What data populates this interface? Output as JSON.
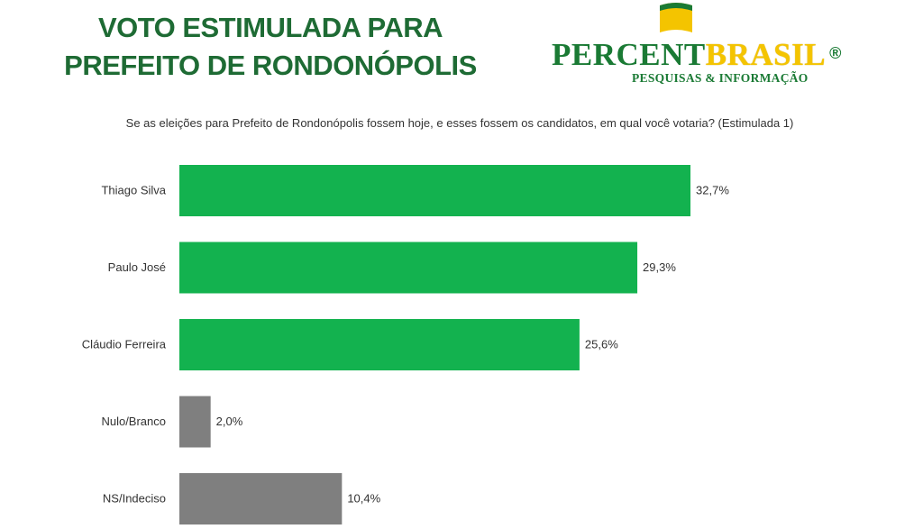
{
  "title": {
    "line1": "VOTO ESTIMULADA PARA",
    "line2": "PREFEITO DE RONDONÓPOLIS"
  },
  "logo": {
    "name_part1": "PERCENT",
    "name_part2": "BRASIL",
    "registered": "®",
    "tagline": "PESQUISAS & INFORMAÇÃO"
  },
  "question": "Se as eleições para Prefeito de Rondonópolis fossem hoje, e esses fossem os candidatos, em qual você votaria? (Estimulada 1)",
  "colors": {
    "title_green": "#1e6b34",
    "bar_green": "#13b24f",
    "bar_gray": "#7f7f7f",
    "logo_green": "#1a7a34",
    "logo_yellow": "#f4c400"
  },
  "chart_data": {
    "type": "bar",
    "orientation": "horizontal",
    "categories": [
      "Thiago Silva",
      "Paulo José",
      "Cláudio Ferreira",
      "Nulo/Branco",
      "NS/Indeciso"
    ],
    "values": [
      32.7,
      29.3,
      25.6,
      2.0,
      10.4
    ],
    "value_labels": [
      "32,7%",
      "29,3%",
      "25,6%",
      "2,0%",
      "10,4%"
    ],
    "bar_colors": [
      "#13b24f",
      "#13b24f",
      "#13b24f",
      "#7f7f7f",
      "#7f7f7f"
    ],
    "title": "",
    "xlabel": "",
    "ylabel": "",
    "xlim": [
      0,
      35
    ],
    "grid": false,
    "legend": "none"
  }
}
